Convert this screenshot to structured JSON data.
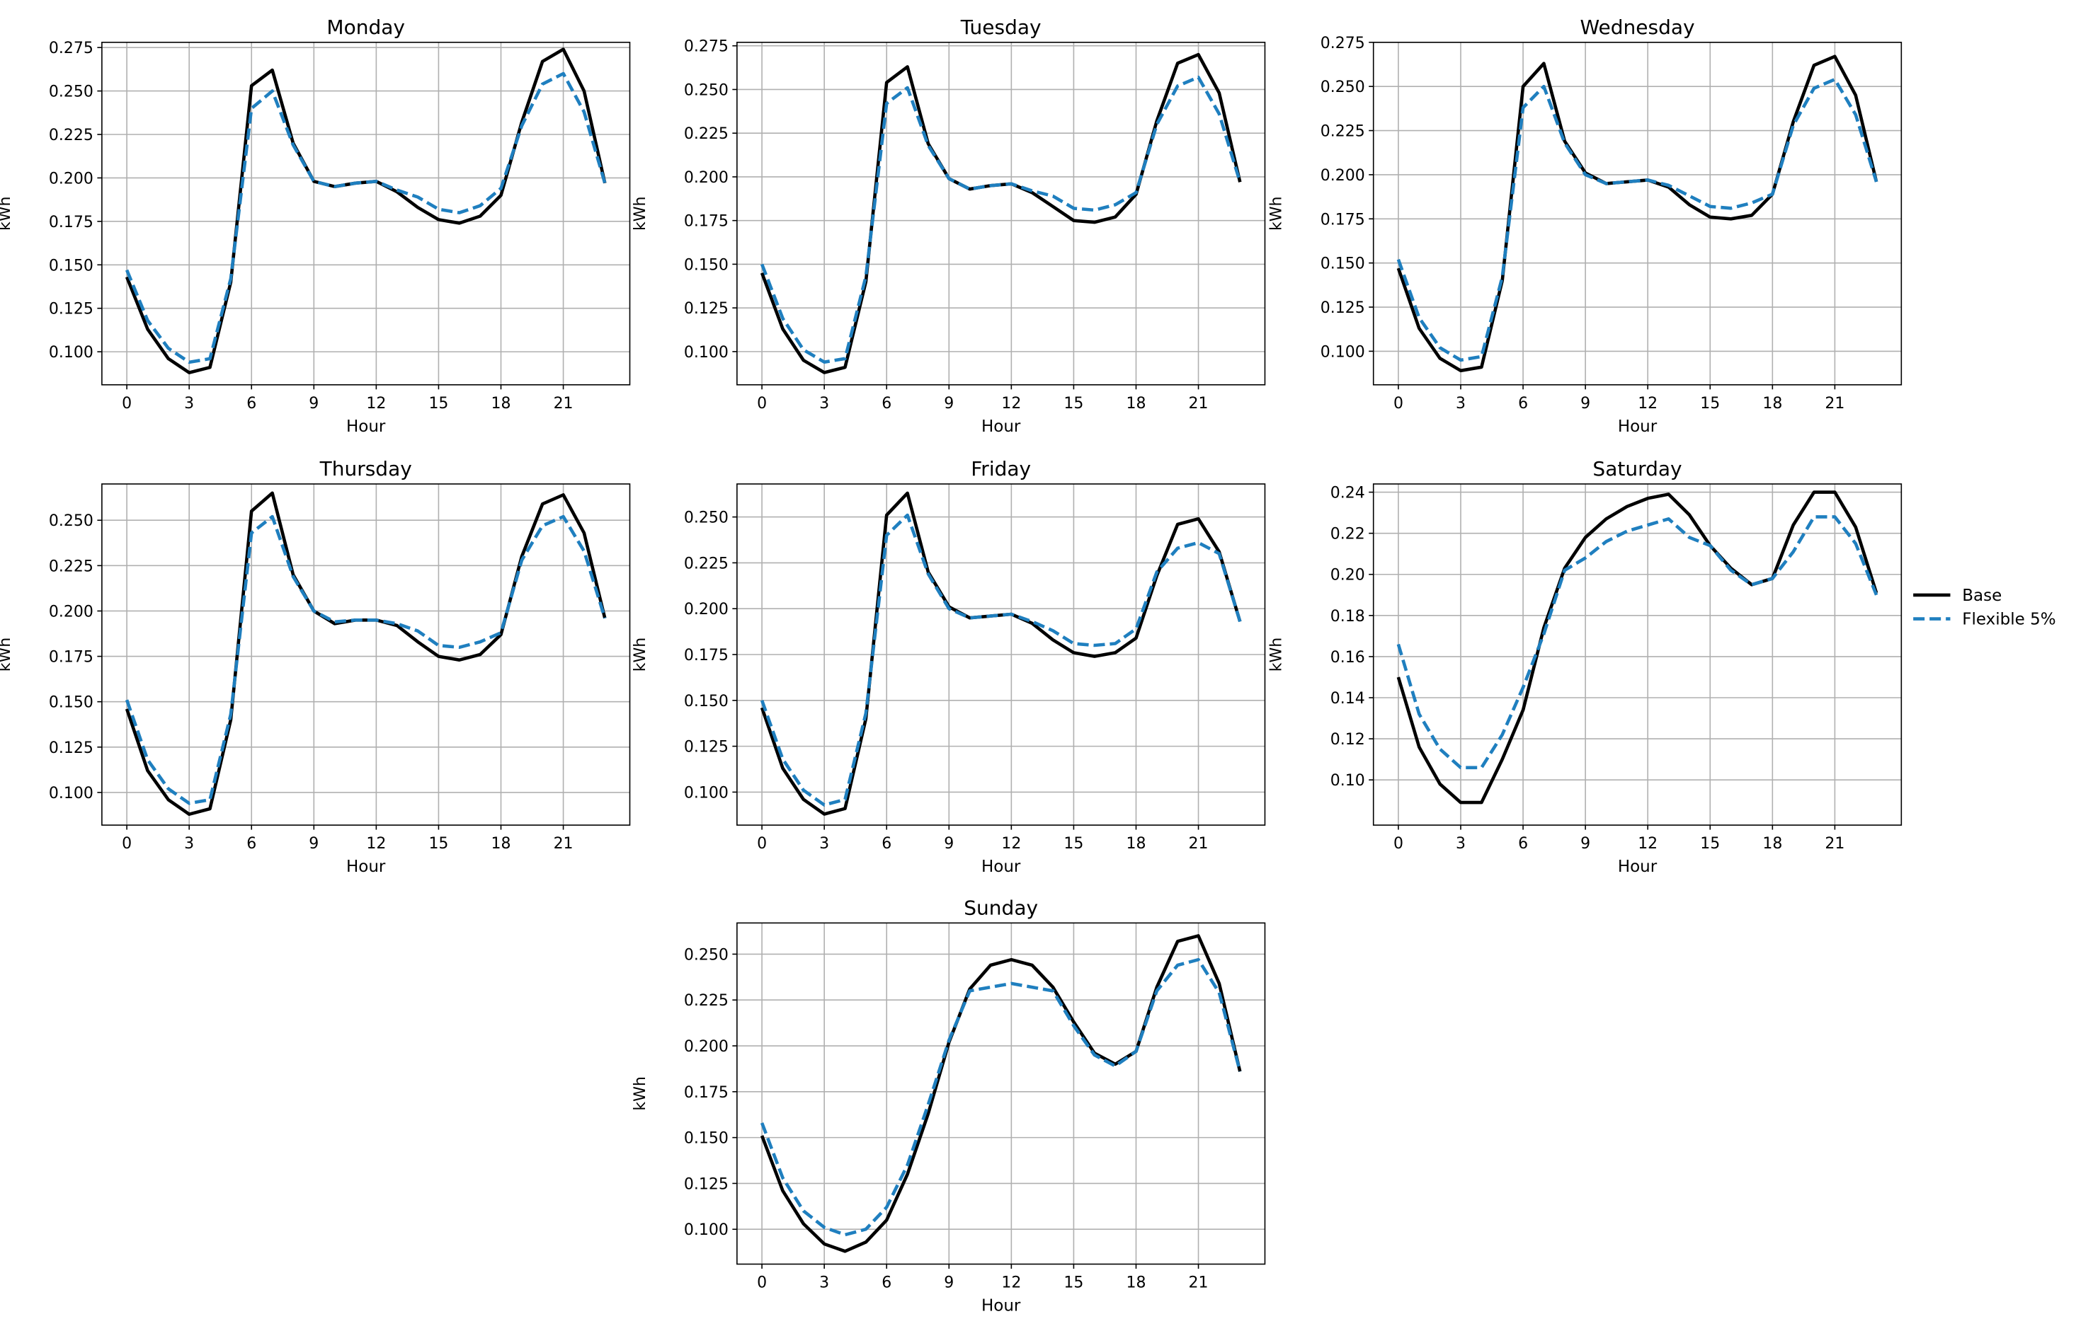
{
  "colors": {
    "base": "#000000",
    "flexible": "#1f7fbf",
    "grid": "#b0b0b0",
    "axis": "#000000"
  },
  "legend": {
    "placement": "right-center",
    "entries": [
      "Base",
      "Flexible 5%"
    ]
  },
  "chart_data": [
    {
      "type": "line",
      "title": "Monday",
      "xlabel": "Hour",
      "ylabel": "kWh",
      "xlim": [
        -1.2,
        24.2
      ],
      "ylim": [
        0.081,
        0.278
      ],
      "grid": true,
      "xticks": [
        0,
        3,
        6,
        9,
        12,
        15,
        18,
        21
      ],
      "yticks": [
        "0.100",
        "0.125",
        "0.150",
        "0.175",
        "0.200",
        "0.225",
        "0.250",
        "0.275"
      ],
      "x": [
        0,
        1,
        2,
        3,
        4,
        5,
        6,
        7,
        8,
        9,
        10,
        11,
        12,
        13,
        14,
        15,
        16,
        17,
        18,
        19,
        20,
        21,
        22,
        23
      ],
      "series": [
        {
          "name": "Base",
          "values": [
            0.143,
            0.113,
            0.096,
            0.088,
            0.091,
            0.14,
            0.253,
            0.262,
            0.22,
            0.198,
            0.195,
            0.197,
            0.198,
            0.192,
            0.183,
            0.176,
            0.174,
            0.178,
            0.19,
            0.232,
            0.267,
            0.274,
            0.25,
            0.197
          ]
        },
        {
          "name": "Flexible 5%",
          "values": [
            0.147,
            0.118,
            0.102,
            0.094,
            0.096,
            0.142,
            0.24,
            0.25,
            0.219,
            0.198,
            0.195,
            0.197,
            0.198,
            0.193,
            0.189,
            0.182,
            0.18,
            0.184,
            0.194,
            0.23,
            0.254,
            0.26,
            0.238,
            0.197
          ]
        }
      ]
    },
    {
      "type": "line",
      "title": "Tuesday",
      "xlabel": "Hour",
      "ylabel": "kWh",
      "xlim": [
        -1.2,
        24.2
      ],
      "ylim": [
        0.081,
        0.277
      ],
      "grid": true,
      "xticks": [
        0,
        3,
        6,
        9,
        12,
        15,
        18,
        21
      ],
      "yticks": [
        "0.100",
        "0.125",
        "0.150",
        "0.175",
        "0.200",
        "0.225",
        "0.250",
        "0.275"
      ],
      "x": [
        0,
        1,
        2,
        3,
        4,
        5,
        6,
        7,
        8,
        9,
        10,
        11,
        12,
        13,
        14,
        15,
        16,
        17,
        18,
        19,
        20,
        21,
        22,
        23
      ],
      "series": [
        {
          "name": "Base",
          "values": [
            0.145,
            0.113,
            0.095,
            0.088,
            0.091,
            0.14,
            0.254,
            0.263,
            0.219,
            0.199,
            0.193,
            0.195,
            0.196,
            0.191,
            0.183,
            0.175,
            0.174,
            0.177,
            0.19,
            0.232,
            0.265,
            0.27,
            0.248,
            0.197
          ]
        },
        {
          "name": "Flexible 5%",
          "values": [
            0.15,
            0.119,
            0.101,
            0.094,
            0.096,
            0.143,
            0.242,
            0.251,
            0.218,
            0.199,
            0.193,
            0.195,
            0.196,
            0.192,
            0.189,
            0.182,
            0.181,
            0.184,
            0.191,
            0.23,
            0.252,
            0.257,
            0.236,
            0.197
          ]
        }
      ]
    },
    {
      "type": "line",
      "title": "Wednesday",
      "xlabel": "Hour",
      "ylabel": "kWh",
      "xlim": [
        -1.2,
        24.2
      ],
      "ylim": [
        0.081,
        0.275
      ],
      "grid": true,
      "xticks": [
        0,
        3,
        6,
        9,
        12,
        15,
        18,
        21
      ],
      "yticks": [
        "0.100",
        "0.125",
        "0.150",
        "0.175",
        "0.200",
        "0.225",
        "0.250",
        "0.275"
      ],
      "x": [
        0,
        1,
        2,
        3,
        4,
        5,
        6,
        7,
        8,
        9,
        10,
        11,
        12,
        13,
        14,
        15,
        16,
        17,
        18,
        19,
        20,
        21,
        22,
        23
      ],
      "series": [
        {
          "name": "Base",
          "values": [
            0.147,
            0.113,
            0.096,
            0.089,
            0.091,
            0.14,
            0.25,
            0.263,
            0.219,
            0.201,
            0.195,
            0.196,
            0.197,
            0.193,
            0.183,
            0.176,
            0.175,
            0.177,
            0.189,
            0.23,
            0.262,
            0.267,
            0.245,
            0.196
          ]
        },
        {
          "name": "Flexible 5%",
          "values": [
            0.152,
            0.119,
            0.102,
            0.095,
            0.097,
            0.142,
            0.238,
            0.25,
            0.218,
            0.2,
            0.195,
            0.196,
            0.197,
            0.194,
            0.188,
            0.182,
            0.181,
            0.184,
            0.189,
            0.228,
            0.249,
            0.254,
            0.234,
            0.196
          ]
        }
      ]
    },
    {
      "type": "line",
      "title": "Thursday",
      "xlabel": "Hour",
      "ylabel": "kWh",
      "xlim": [
        -1.2,
        24.2
      ],
      "ylim": [
        0.082,
        0.27
      ],
      "grid": true,
      "xticks": [
        0,
        3,
        6,
        9,
        12,
        15,
        18,
        21
      ],
      "yticks": [
        "0.100",
        "0.125",
        "0.150",
        "0.175",
        "0.200",
        "0.225",
        "0.250"
      ],
      "x": [
        0,
        1,
        2,
        3,
        4,
        5,
        6,
        7,
        8,
        9,
        10,
        11,
        12,
        13,
        14,
        15,
        16,
        17,
        18,
        19,
        20,
        21,
        22,
        23
      ],
      "series": [
        {
          "name": "Base",
          "values": [
            0.146,
            0.112,
            0.096,
            0.088,
            0.091,
            0.14,
            0.255,
            0.265,
            0.22,
            0.2,
            0.193,
            0.195,
            0.195,
            0.192,
            0.183,
            0.175,
            0.173,
            0.176,
            0.187,
            0.23,
            0.259,
            0.264,
            0.243,
            0.196
          ]
        },
        {
          "name": "Flexible 5%",
          "values": [
            0.151,
            0.118,
            0.102,
            0.094,
            0.096,
            0.143,
            0.243,
            0.252,
            0.219,
            0.2,
            0.194,
            0.195,
            0.195,
            0.193,
            0.189,
            0.181,
            0.18,
            0.183,
            0.188,
            0.228,
            0.247,
            0.252,
            0.233,
            0.196
          ]
        }
      ]
    },
    {
      "type": "line",
      "title": "Friday",
      "xlabel": "Hour",
      "ylabel": "kWh",
      "xlim": [
        -1.2,
        24.2
      ],
      "ylim": [
        0.082,
        0.268
      ],
      "grid": true,
      "xticks": [
        0,
        3,
        6,
        9,
        12,
        15,
        18,
        21
      ],
      "yticks": [
        "0.100",
        "0.125",
        "0.150",
        "0.175",
        "0.200",
        "0.225",
        "0.250"
      ],
      "x": [
        0,
        1,
        2,
        3,
        4,
        5,
        6,
        7,
        8,
        9,
        10,
        11,
        12,
        13,
        14,
        15,
        16,
        17,
        18,
        19,
        20,
        21,
        22,
        23
      ],
      "series": [
        {
          "name": "Base",
          "values": [
            0.146,
            0.113,
            0.096,
            0.088,
            0.091,
            0.14,
            0.251,
            0.263,
            0.22,
            0.201,
            0.195,
            0.196,
            0.197,
            0.192,
            0.183,
            0.176,
            0.174,
            0.176,
            0.184,
            0.218,
            0.246,
            0.249,
            0.231,
            0.193
          ]
        },
        {
          "name": "Flexible 5%",
          "values": [
            0.15,
            0.118,
            0.101,
            0.093,
            0.096,
            0.143,
            0.24,
            0.251,
            0.219,
            0.2,
            0.195,
            0.196,
            0.197,
            0.193,
            0.188,
            0.181,
            0.18,
            0.181,
            0.189,
            0.22,
            0.233,
            0.236,
            0.23,
            0.193
          ]
        }
      ]
    },
    {
      "type": "line",
      "title": "Saturday",
      "xlabel": "Hour",
      "ylabel": "kWh",
      "xlim": [
        -1.2,
        24.2
      ],
      "ylim": [
        0.078,
        0.244
      ],
      "grid": true,
      "xticks": [
        0,
        3,
        6,
        9,
        12,
        15,
        18,
        21
      ],
      "yticks": [
        "0.10",
        "0.12",
        "0.14",
        "0.16",
        "0.18",
        "0.20",
        "0.22",
        "0.24"
      ],
      "x": [
        0,
        1,
        2,
        3,
        4,
        5,
        6,
        7,
        8,
        9,
        10,
        11,
        12,
        13,
        14,
        15,
        16,
        17,
        18,
        19,
        20,
        21,
        22,
        23
      ],
      "series": [
        {
          "name": "Base",
          "values": [
            0.15,
            0.116,
            0.098,
            0.089,
            0.089,
            0.11,
            0.134,
            0.174,
            0.203,
            0.218,
            0.227,
            0.233,
            0.237,
            0.239,
            0.229,
            0.214,
            0.203,
            0.195,
            0.198,
            0.224,
            0.24,
            0.24,
            0.223,
            0.191
          ]
        },
        {
          "name": "Flexible 5%",
          "values": [
            0.166,
            0.132,
            0.115,
            0.106,
            0.106,
            0.122,
            0.145,
            0.171,
            0.202,
            0.208,
            0.216,
            0.221,
            0.224,
            0.227,
            0.218,
            0.214,
            0.202,
            0.195,
            0.198,
            0.211,
            0.228,
            0.228,
            0.215,
            0.19
          ]
        }
      ]
    },
    {
      "type": "line",
      "title": "Sunday",
      "xlabel": "Hour",
      "ylabel": "kWh",
      "xlim": [
        -1.2,
        24.2
      ],
      "ylim": [
        0.081,
        0.267
      ],
      "grid": true,
      "xticks": [
        0,
        3,
        6,
        9,
        12,
        15,
        18,
        21
      ],
      "yticks": [
        "0.100",
        "0.125",
        "0.150",
        "0.175",
        "0.200",
        "0.225",
        "0.250"
      ],
      "x": [
        0,
        1,
        2,
        3,
        4,
        5,
        6,
        7,
        8,
        9,
        10,
        11,
        12,
        13,
        14,
        15,
        16,
        17,
        18,
        19,
        20,
        21,
        22,
        23
      ],
      "series": [
        {
          "name": "Base",
          "values": [
            0.151,
            0.121,
            0.103,
            0.092,
            0.088,
            0.093,
            0.105,
            0.13,
            0.163,
            0.202,
            0.231,
            0.244,
            0.247,
            0.244,
            0.232,
            0.213,
            0.196,
            0.19,
            0.197,
            0.232,
            0.257,
            0.26,
            0.234,
            0.186
          ]
        },
        {
          "name": "Flexible 5%",
          "values": [
            0.158,
            0.128,
            0.11,
            0.101,
            0.097,
            0.1,
            0.112,
            0.135,
            0.168,
            0.203,
            0.23,
            0.232,
            0.234,
            0.232,
            0.23,
            0.211,
            0.195,
            0.189,
            0.197,
            0.23,
            0.244,
            0.247,
            0.229,
            0.186
          ]
        }
      ]
    }
  ]
}
